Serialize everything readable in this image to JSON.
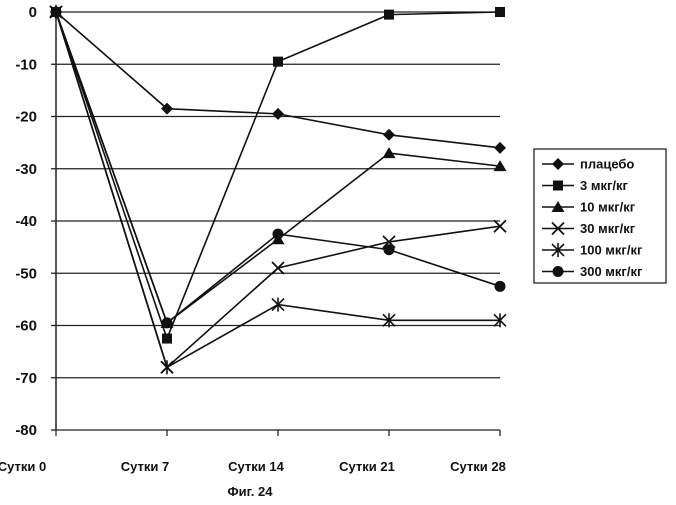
{
  "chart_data": {
    "type": "line",
    "categories": [
      "Сутки 0",
      "Сутки 7",
      "Сутки 14",
      "Сутки 21",
      "Сутки 28"
    ],
    "ylim": [
      -80,
      0
    ],
    "yticks": [
      0,
      -10,
      -20,
      -30,
      -40,
      -50,
      -60,
      -70,
      -80
    ],
    "grid": true,
    "legend_position": "right",
    "series": [
      {
        "name": "плацебо",
        "marker": "diamond",
        "values": [
          0,
          -18.5,
          -19.5,
          -23.5,
          -26
        ]
      },
      {
        "name": "3 мкг/кг",
        "marker": "square",
        "values": [
          0,
          -62.5,
          -9.5,
          -0.5,
          0
        ]
      },
      {
        "name": "10 мкг/кг",
        "marker": "triangle",
        "values": [
          0,
          -59.5,
          -43.5,
          -27,
          -29.5
        ]
      },
      {
        "name": "30 мкг/кг",
        "marker": "x",
        "values": [
          0,
          -68,
          -49,
          -44,
          -41
        ]
      },
      {
        "name": "100 мкг/кг",
        "marker": "star",
        "values": [
          0,
          -68,
          -56,
          -59,
          -59
        ]
      },
      {
        "name": "300 мкг/кг",
        "marker": "circle",
        "values": [
          0,
          -59.5,
          -42.5,
          -45.5,
          -52.5
        ]
      }
    ]
  },
  "caption": "Фиг. 24"
}
